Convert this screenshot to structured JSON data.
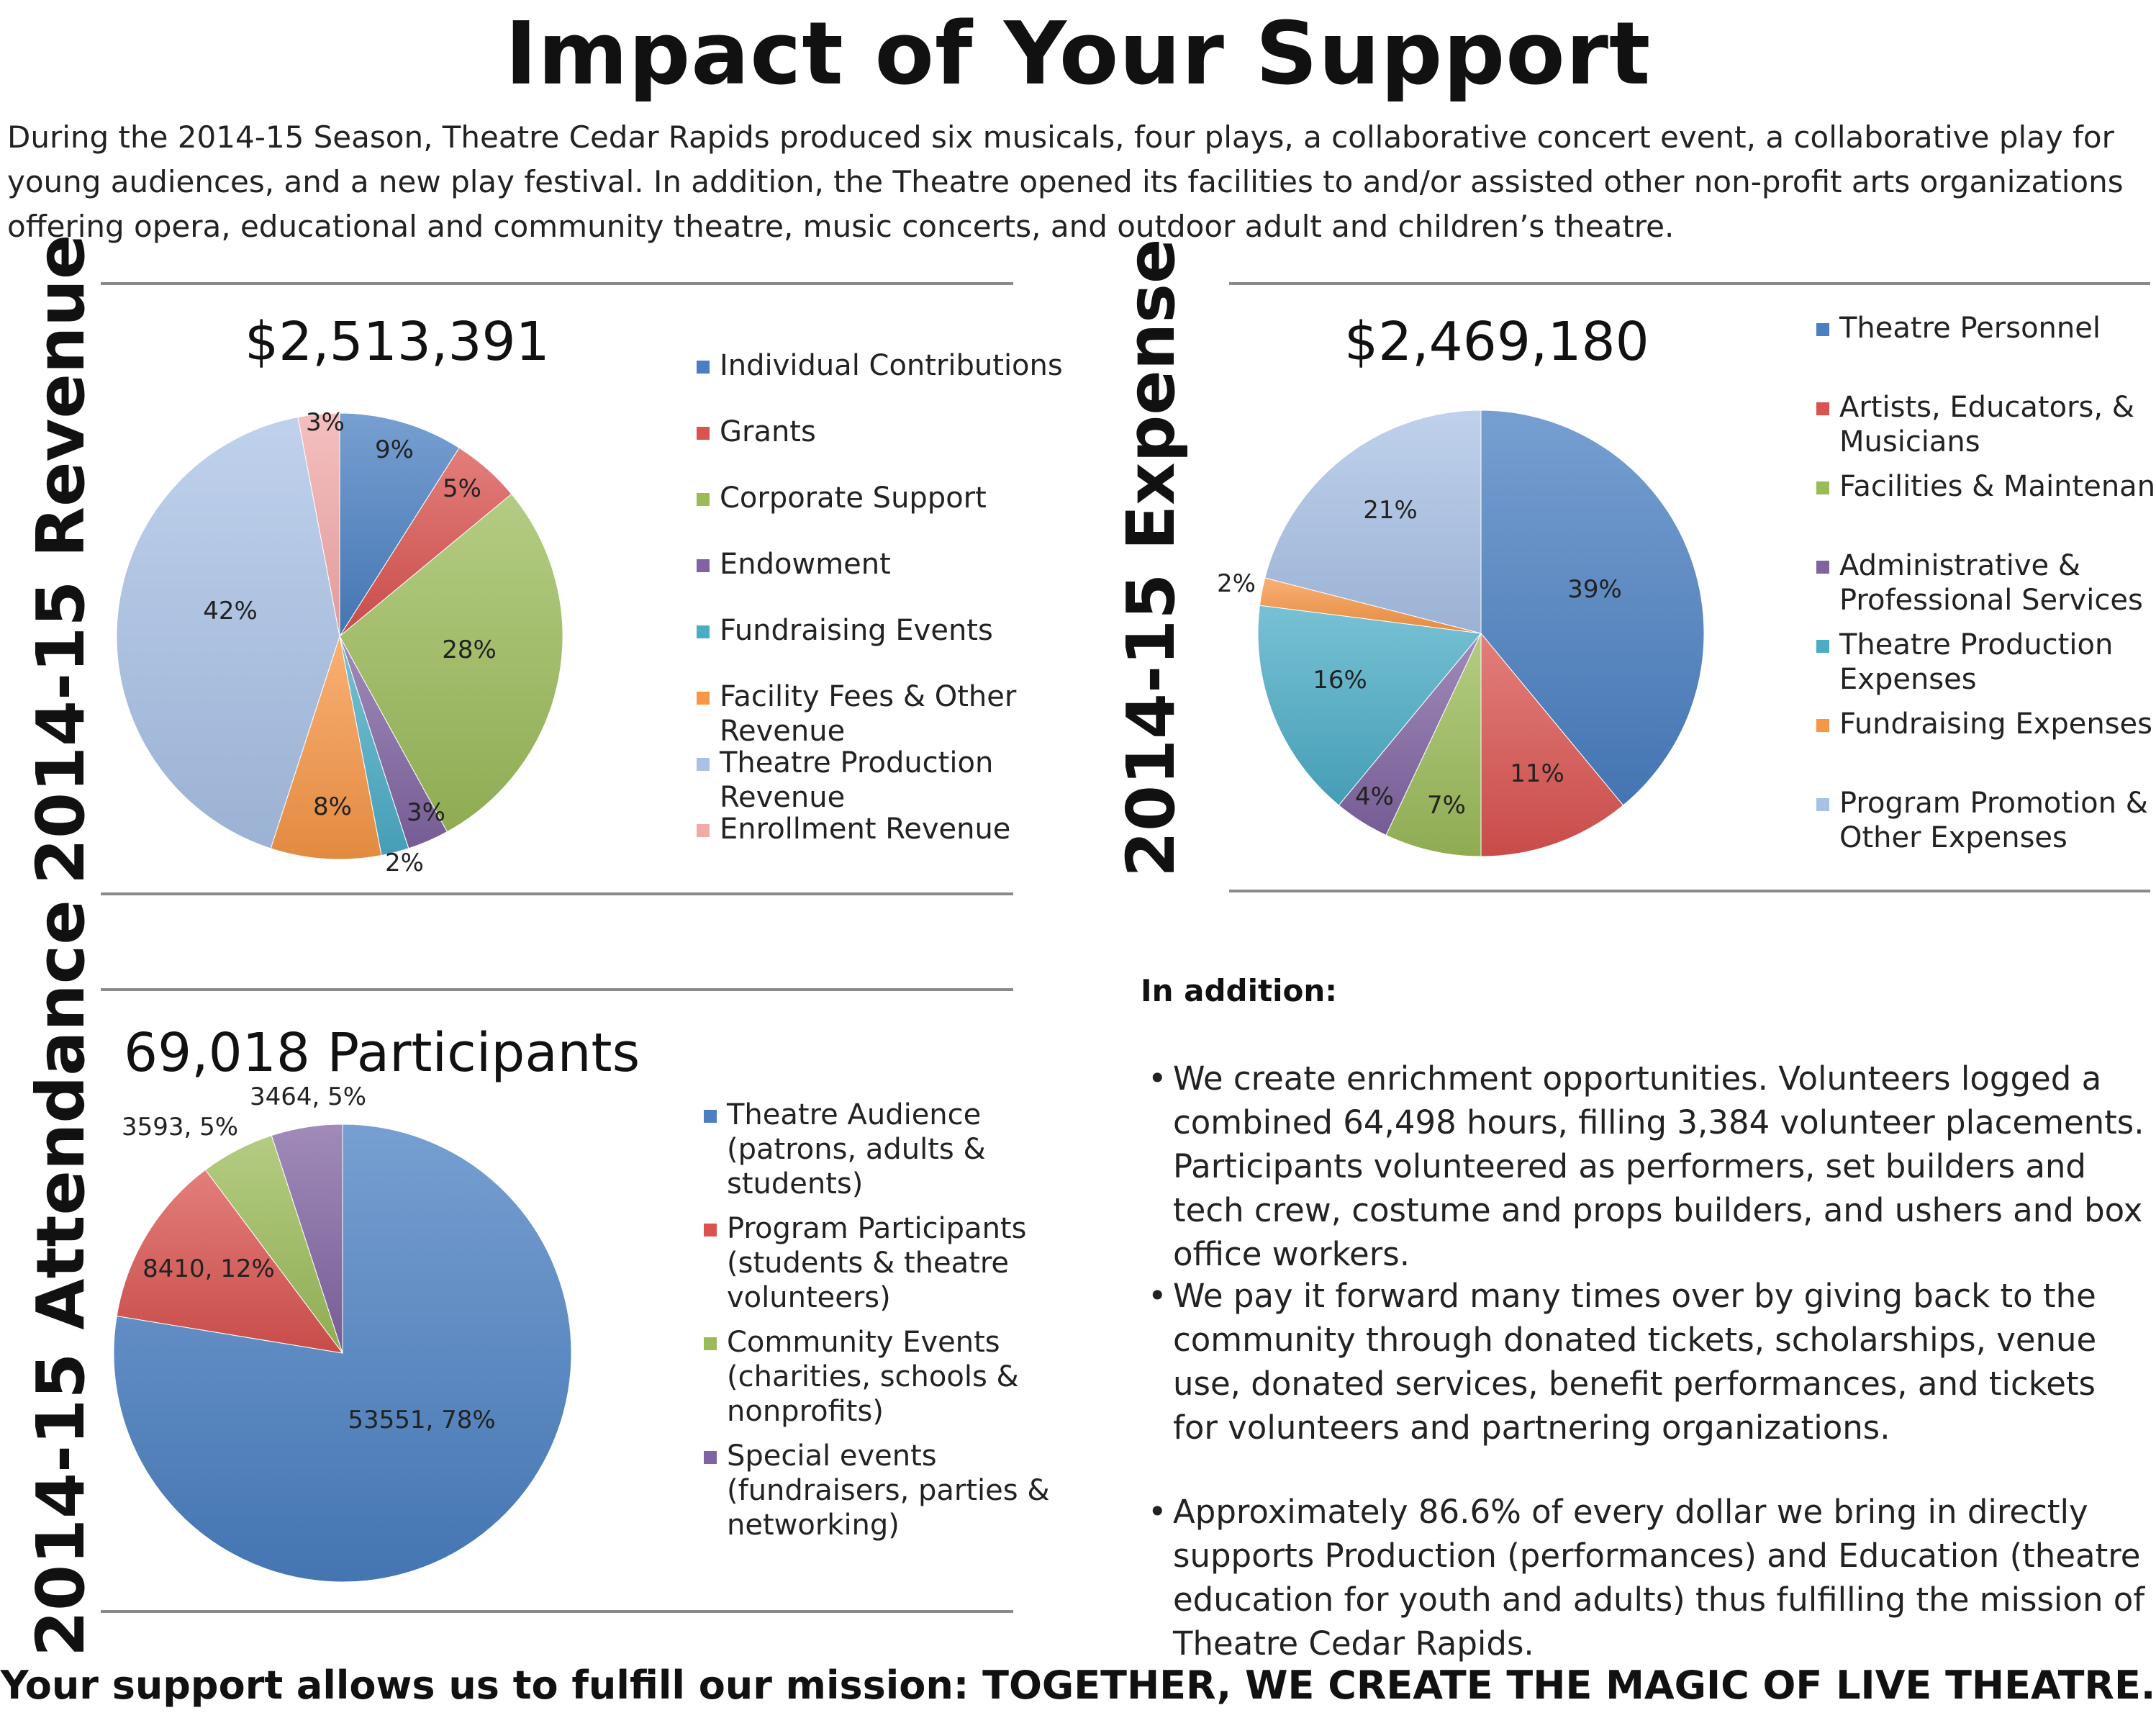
{
  "title": "Impact of Your Support",
  "intro": "During the 2014-15 Season, Theatre Cedar Rapids produced six musicals, four plays, a collaborative concert event, a collaborative play for young audiences, and a new play festival.  In addition, the Theatre opened its facilities to and/or assisted other non-profit arts organizations offering opera, educational and community theatre, music concerts, and outdoor adult and children’s theatre.",
  "sections": {
    "revenue_title": "2014-15 Revenue",
    "expense_title": "2014-15 Expense",
    "attendance_title": "2014-15 Attendance"
  },
  "chart_data": [
    {
      "type": "pie",
      "title": "$2,513,391",
      "labels": [
        "Individual Contributions",
        "Grants",
        "Corporate Support",
        "Endowment",
        "Fundraising Events",
        "Facility Fees & Other Revenue",
        "Theatre Production Revenue",
        "Enrollment Revenue"
      ],
      "values": [
        9,
        5,
        28,
        3,
        2,
        8,
        42,
        3
      ],
      "data_labels": [
        "9%",
        "5%",
        "28%",
        "3%",
        "2%",
        "8%",
        "42%",
        "3%"
      ],
      "colors": [
        "#4a7fc1",
        "#d9534f",
        "#9bbb59",
        "#8064a2",
        "#4bacc6",
        "#f79646",
        "#a9c1e6",
        "#f2aaa9"
      ],
      "legend": "right"
    },
    {
      "type": "pie",
      "title": "$2,469,180",
      "labels": [
        "Theatre Personnel",
        "Artists, Educators, & Musicians",
        "Facilities & Maintenance",
        "Administrative & Professional Services",
        "Theatre Production Expenses",
        "Fundraising Expenses",
        "Program Promotion & Other Expenses"
      ],
      "values": [
        39,
        11,
        7,
        4,
        16,
        2,
        21
      ],
      "data_labels": [
        "39%",
        "11%",
        "7%",
        "4%",
        "16%",
        "2%",
        "21%"
      ],
      "colors": [
        "#4a7fc1",
        "#d9534f",
        "#9bbb59",
        "#8064a2",
        "#4bacc6",
        "#f79646",
        "#a9c1e6"
      ],
      "legend": "right"
    },
    {
      "type": "pie",
      "title": "69,018 Participants",
      "labels": [
        "Theatre Audience (patrons, adults & students)",
        "Program Participants (students & theatre volunteers)",
        "Community Events (charities, schools & nonprofits)",
        "Special events (fundraisers, parties & networking)"
      ],
      "values": [
        53551,
        8410,
        3593,
        3464
      ],
      "data_labels": [
        "53551, 78%",
        "8410, 12%",
        "3593, 5%",
        "3464, 5%"
      ],
      "colors": [
        "#4a7fc1",
        "#d9534f",
        "#9bbb59",
        "#8064a2"
      ],
      "legend": "right"
    }
  ],
  "legend_text": {
    "revenue": [
      [
        "Individual Contributions"
      ],
      [
        "Grants"
      ],
      [
        "Corporate Support"
      ],
      [
        "Endowment"
      ],
      [
        "Fundraising Events"
      ],
      [
        "Facility Fees & Other",
        "Revenue"
      ],
      [
        "Theatre Production",
        "Revenue"
      ],
      [
        "Enrollment Revenue"
      ]
    ],
    "expense": [
      [
        "Theatre Personnel"
      ],
      [
        "Artists, Educators, &",
        "Musicians"
      ],
      [
        "Facilities & Maintenance"
      ],
      [
        "Administrative &",
        "Professional Services"
      ],
      [
        "Theatre Production",
        "Expenses"
      ],
      [
        "Fundraising Expenses"
      ],
      [
        "Program Promotion &",
        "Other Expenses"
      ]
    ],
    "attendance": [
      [
        "Theatre Audience",
        "(patrons, adults &",
        "students)"
      ],
      [
        "Program Participants",
        "(students & theatre",
        "volunteers)"
      ],
      [
        "Community Events",
        "(charities, schools &",
        "nonprofits)"
      ],
      [
        "Special events",
        "(fundraisers, parties &",
        "networking)"
      ]
    ]
  },
  "addition": {
    "heading": "In addition:",
    "bullet_char": "•",
    "bullets": [
      "We create enrichment opportunities.  Volunteers logged a combined 64,498 hours, filling 3,384 volunteer placements.  Participants volunteered as performers, set builders and tech crew, costume and props builders, and ushers and box office workers.",
      "We pay it forward many times over by giving back to the community through donated tickets, scholarships, venue use, donated services, benefit performances, and tickets for volunteers and partnering organizations.",
      "Approximately 86.6% of every dollar we bring in directly supports Production (performances) and Education (theatre education for youth and adults) thus fulfilling the mission of Theatre Cedar Rapids."
    ]
  },
  "footer": "Your support allows us to fulfill our mission: TOGETHER, WE CREATE THE MAGIC OF LIVE THEATRE."
}
